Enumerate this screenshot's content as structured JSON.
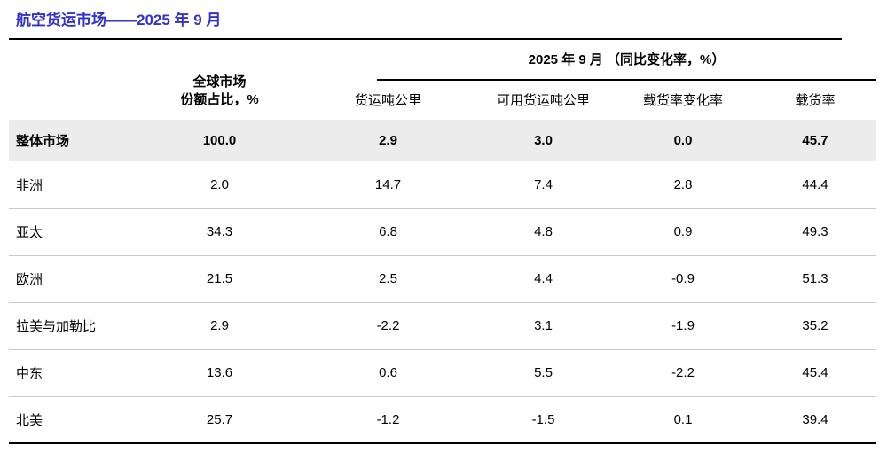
{
  "page": {
    "title": "航空货运市场——2025 年 9 月"
  },
  "colors": {
    "title_text": "#3333cc",
    "rule_line": "#000000",
    "highlight_row_bg": "#ececec",
    "row_separator": "#c9c9c9"
  },
  "table": {
    "group_header": "2025 年 9 月 （同比变化率，%）",
    "share_header": {
      "line1": "全球市场",
      "line2": "份额占比，%"
    },
    "sub_headers": [
      "货运吨公里",
      "可用货运吨公里",
      "载货率变化率",
      "载货率"
    ],
    "rows": [
      {
        "region": "整体市场",
        "share": "100.0",
        "ctk": "2.9",
        "actk": "3.0",
        "lf_change": "0.0",
        "lf": "45.7"
      },
      {
        "region": "非洲",
        "share": "2.0",
        "ctk": "14.7",
        "actk": "7.4",
        "lf_change": "2.8",
        "lf": "44.4"
      },
      {
        "region": "亚太",
        "share": "34.3",
        "ctk": "6.8",
        "actk": "4.8",
        "lf_change": "0.9",
        "lf": "49.3"
      },
      {
        "region": "欧洲",
        "share": "21.5",
        "ctk": "2.5",
        "actk": "4.4",
        "lf_change": "-0.9",
        "lf": "51.3"
      },
      {
        "region": "拉美与加勒比",
        "share": "2.9",
        "ctk": "-2.2",
        "actk": "3.1",
        "lf_change": "-1.9",
        "lf": "35.2"
      },
      {
        "region": "中东",
        "share": "13.6",
        "ctk": "0.6",
        "actk": "5.5",
        "lf_change": "-2.2",
        "lf": "45.4"
      },
      {
        "region": "北美",
        "share": "25.7",
        "ctk": "-1.2",
        "actk": "-1.5",
        "lf_change": "0.1",
        "lf": "39.4"
      }
    ]
  }
}
